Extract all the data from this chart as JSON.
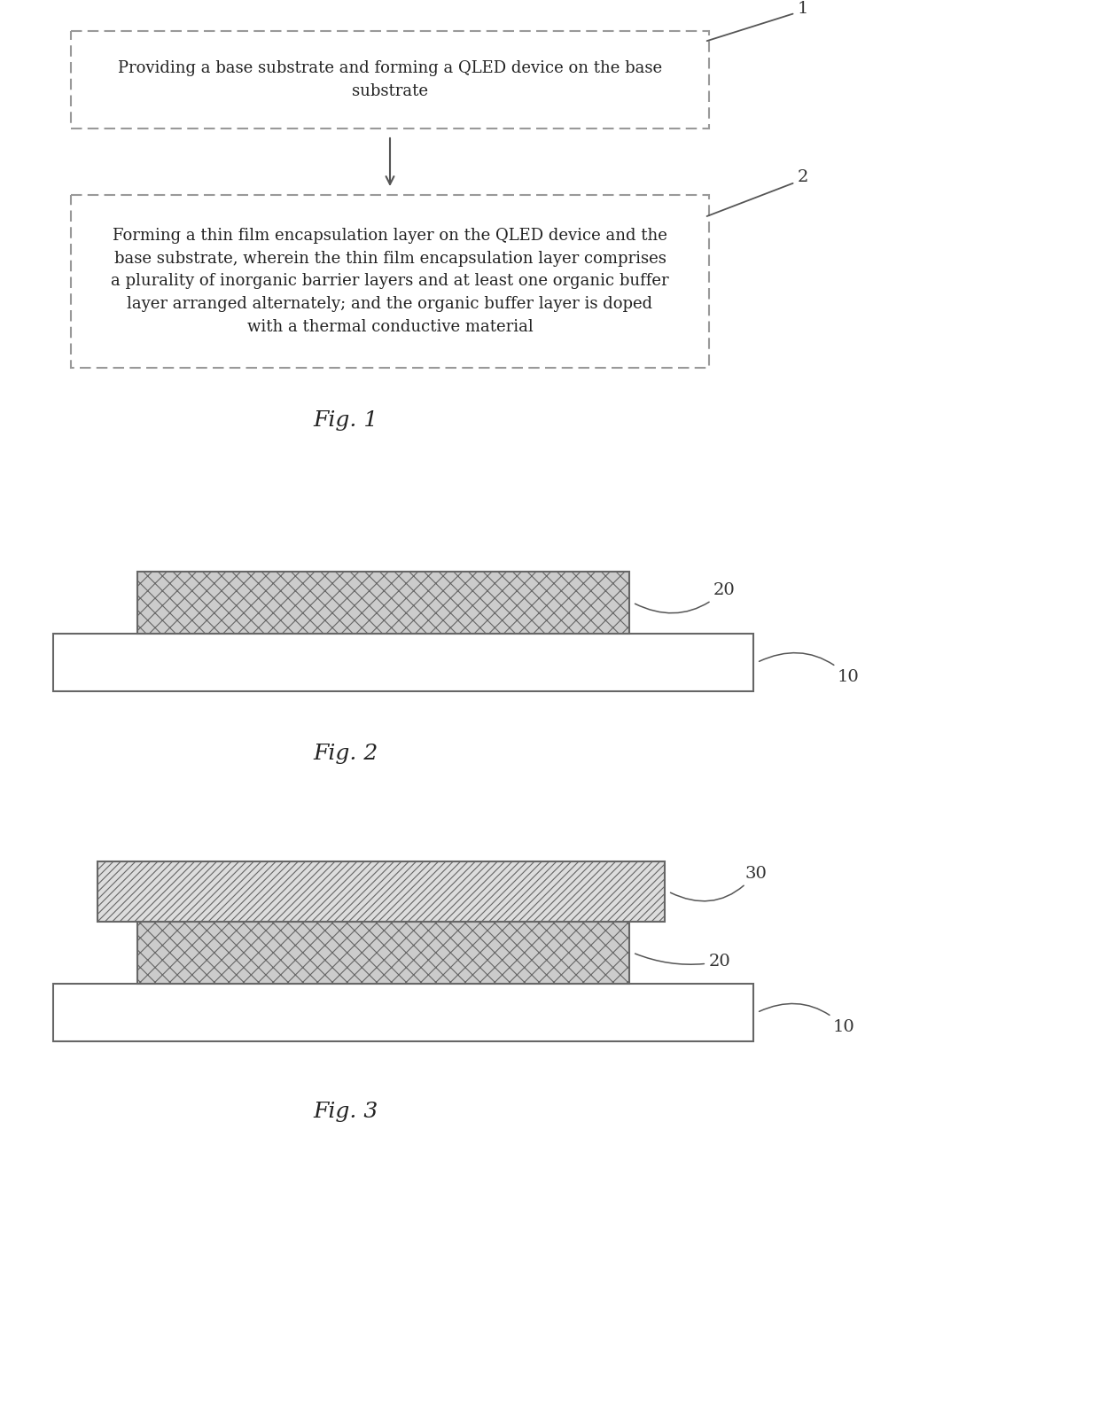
{
  "fig_width": 12.4,
  "fig_height": 15.91,
  "bg_color": "#ffffff",
  "box_fill_color": "#ffffff",
  "box1_text": "Providing a base substrate and forming a QLED device on the base\nsubstrate",
  "box2_line1": "Forming a thin film encapsulation layer on the QLED device and the",
  "box2_line2": "base substrate, wherein the thin film encapsulation layer comprises",
  "box2_line3": "a plurality of inorganic barrier layers and at least one organic buffer",
  "box2_line4": "layer arranged alternately; and the organic buffer layer is doped",
  "box2_line5": "with a thermal conductive material",
  "fig1_label": "Fig. 1",
  "fig2_label": "Fig. 2",
  "fig3_label": "Fig. 3",
  "label1": "1",
  "label2": "2",
  "layer10_label": "10",
  "layer20_label": "20",
  "layer30_label": "30",
  "text_fontsize": 13,
  "label_fontsize": 14,
  "fig_label_fontsize": 18,
  "box_edge_color": "#999999",
  "layer_edge_color": "#666666",
  "crosshatch_face": "#cccccc",
  "diagonal_face": "#dddddd",
  "substrate_face": "#ffffff",
  "arrow_color": "#555555"
}
